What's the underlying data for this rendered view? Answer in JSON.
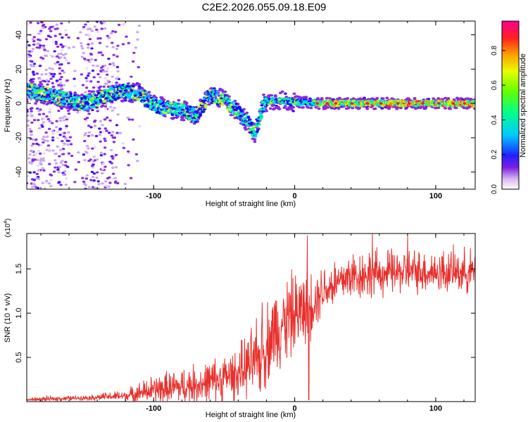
{
  "title": "C2E2.2026.055.09.18.E09",
  "chart_data": [
    {
      "type": "heatmap",
      "name": "spectrogram",
      "xlabel": "Height of straight line (km)",
      "ylabel": "Frequency (Hz)",
      "xlim": [
        -190,
        128
      ],
      "ylim": [
        -50,
        48
      ],
      "x_ticks": [
        -100,
        0,
        100
      ],
      "y_ticks": [
        -40,
        -20,
        0,
        20,
        40
      ],
      "colorbar": {
        "label": "Normalized spectral amplitude",
        "range": [
          0,
          0.97
        ],
        "ticks": [
          0.0,
          0.2,
          0.4,
          0.6,
          0.8
        ]
      },
      "ridge": [
        {
          "x": -190,
          "y": 8
        },
        {
          "x": -170,
          "y": 4
        },
        {
          "x": -150,
          "y": 0
        },
        {
          "x": -135,
          "y": 4
        },
        {
          "x": -125,
          "y": 7
        },
        {
          "x": -110,
          "y": 6
        },
        {
          "x": -100,
          "y": -1
        },
        {
          "x": -90,
          "y": -3
        },
        {
          "x": -80,
          "y": -4
        },
        {
          "x": -70,
          "y": -7
        },
        {
          "x": -60,
          "y": 5
        },
        {
          "x": -50,
          "y": 2
        },
        {
          "x": -40,
          "y": -5
        },
        {
          "x": -32,
          "y": -12
        },
        {
          "x": -28,
          "y": -18
        },
        {
          "x": -22,
          "y": 0
        },
        {
          "x": -15,
          "y": 2
        },
        {
          "x": 0,
          "y": 1
        },
        {
          "x": 20,
          "y": 0
        },
        {
          "x": 60,
          "y": 0
        },
        {
          "x": 128,
          "y": 0
        }
      ]
    },
    {
      "type": "line",
      "name": "snr",
      "xlabel": "Height of straight line (km)",
      "ylabel": "SNR (10 * v/v)",
      "y_multiplier": "(x10",
      "y_multiplier_exp": "4",
      "y_multiplier_close": ")",
      "xlim": [
        -190,
        128
      ],
      "ylim": [
        0,
        1.9
      ],
      "x_ticks": [
        -100,
        0,
        100
      ],
      "y_ticks": [
        0.5,
        1.0,
        1.5
      ],
      "series": [
        {
          "name": "SNR",
          "color": "#e8302c",
          "envelope": [
            {
              "x": -190,
              "base": 0.02,
              "amp": 0.02
            },
            {
              "x": -170,
              "base": 0.03,
              "amp": 0.04
            },
            {
              "x": -150,
              "base": 0.04,
              "amp": 0.03
            },
            {
              "x": -120,
              "base": 0.06,
              "amp": 0.08
            },
            {
              "x": -100,
              "base": 0.12,
              "amp": 0.2
            },
            {
              "x": -80,
              "base": 0.15,
              "amp": 0.25
            },
            {
              "x": -60,
              "base": 0.2,
              "amp": 0.3
            },
            {
              "x": -40,
              "base": 0.3,
              "amp": 0.35
            },
            {
              "x": -25,
              "base": 0.45,
              "amp": 0.55
            },
            {
              "x": -15,
              "base": 0.75,
              "amp": 0.6
            },
            {
              "x": -5,
              "base": 0.9,
              "amp": 0.6
            },
            {
              "x": 10,
              "base": 1.05,
              "amp": 0.5
            },
            {
              "x": 20,
              "base": 1.25,
              "amp": 0.35
            },
            {
              "x": 40,
              "base": 1.4,
              "amp": 0.35
            },
            {
              "x": 80,
              "base": 1.45,
              "amp": 0.3
            },
            {
              "x": 128,
              "base": 1.45,
              "amp": 0.3
            }
          ],
          "spikes": [
            {
              "x": 9,
              "y": 1.88
            },
            {
              "x": 10,
              "y": 0.02
            },
            {
              "x": 55,
              "y": 1.9
            },
            {
              "x": 80,
              "y": 1.9
            },
            {
              "x": -23,
              "y": 1.12
            }
          ]
        }
      ]
    }
  ]
}
